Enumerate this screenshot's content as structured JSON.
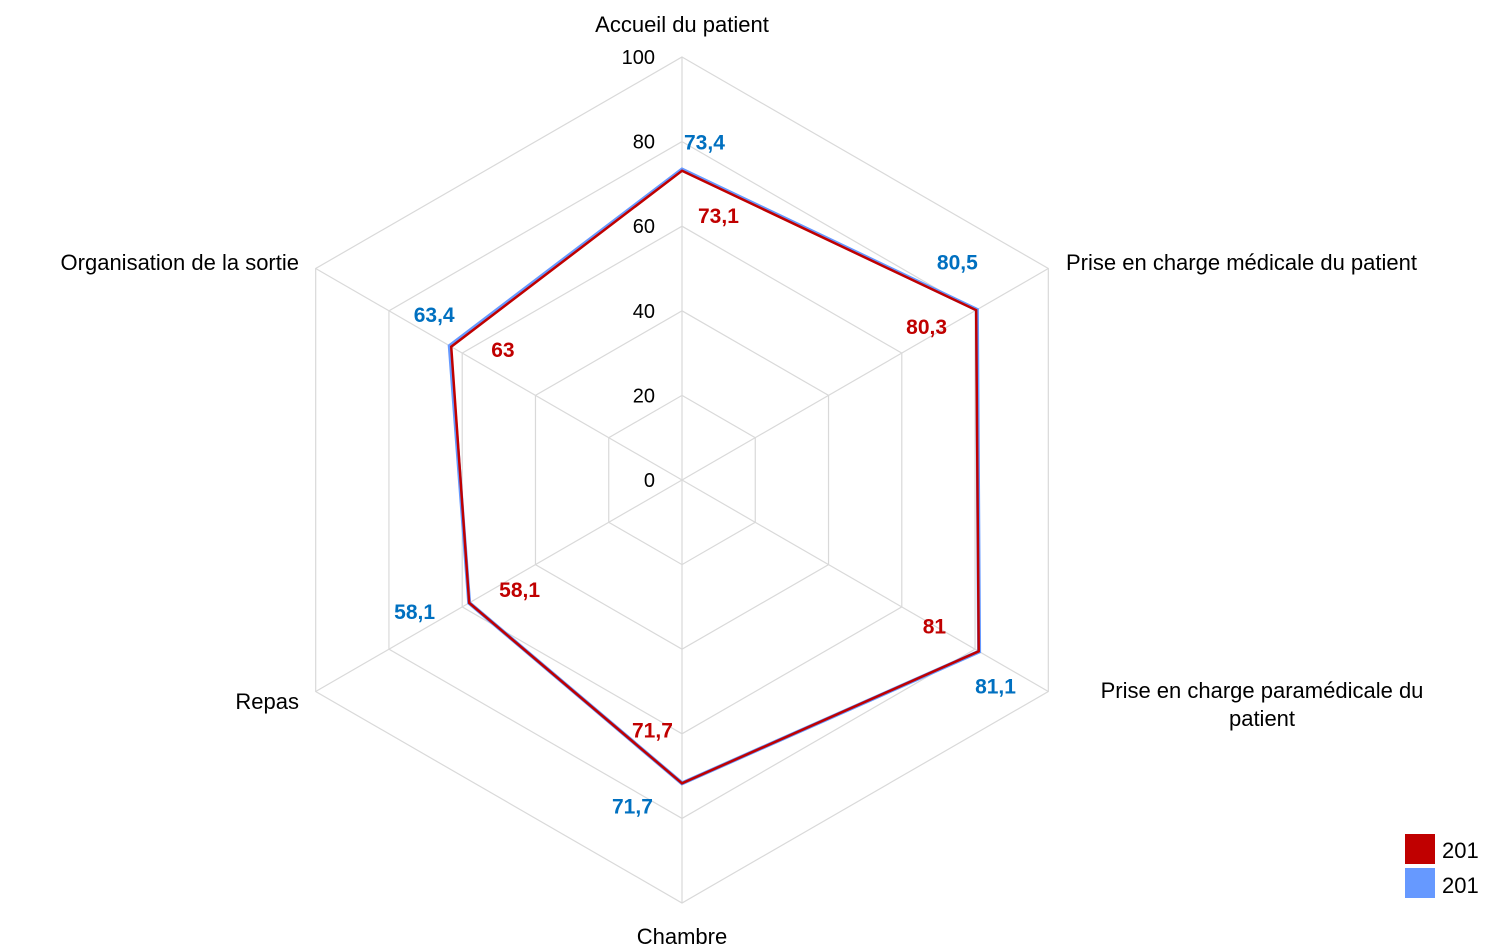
{
  "chart_data": {
    "type": "radar",
    "title": "",
    "axes": [
      "Accueil du patient",
      "Prise en charge médicale du patient",
      "Prise en charge paramédicale du patient",
      "Chambre",
      "Repas",
      "Organisation de la sortie"
    ],
    "axis_label_lines": [
      [
        "Accueil du patient"
      ],
      [
        "Prise en charge médicale du patient"
      ],
      [
        "Prise en charge paramédicale du",
        "patient"
      ],
      [
        "Chambre"
      ],
      [
        "Repas"
      ],
      [
        "Organisation de la sortie"
      ]
    ],
    "rlim": [
      0,
      100
    ],
    "ticks": [
      0,
      20,
      40,
      60,
      80,
      100
    ],
    "tick_labels": [
      "0",
      "20",
      "40",
      "60",
      "80",
      "100"
    ],
    "grid": true,
    "legend_position": "bottom-right",
    "series": [
      {
        "name": "201",
        "color": "#C00000",
        "label_color": "#C00000",
        "values": [
          73.1,
          80.3,
          81,
          71.7,
          58.1,
          63
        ],
        "value_labels": [
          "73,1",
          "80,3",
          "81",
          "71,7",
          "58,1",
          "63"
        ]
      },
      {
        "name": "201",
        "color": "#6699FF",
        "label_color": "#0070C0",
        "values": [
          73.4,
          80.5,
          81.1,
          71.7,
          58.1,
          63.4
        ],
        "value_labels": [
          "73,4",
          "80,5",
          "81,1",
          "71,7",
          "58,1",
          "63,4"
        ]
      }
    ]
  }
}
